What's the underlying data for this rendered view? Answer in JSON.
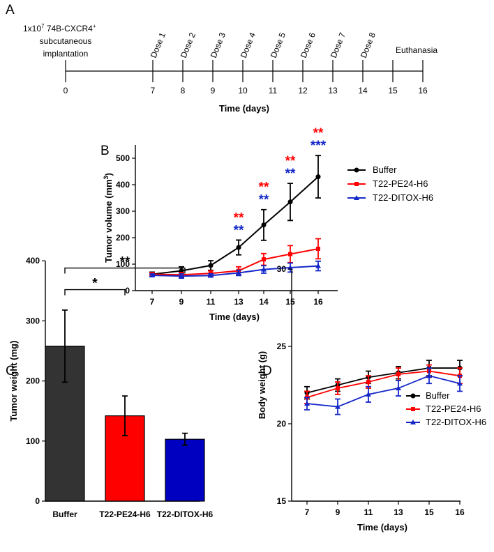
{
  "panels": {
    "a": "A",
    "b": "B",
    "c": "C",
    "d": "D"
  },
  "timeline": {
    "implantation_line1": "1x10",
    "implantation_sup": "7",
    "implantation_cell": " 74B-CXCR4",
    "implantation_plus": "+",
    "implantation_line2": "subcutaneous",
    "implantation_line3": "implantation",
    "ticks": [
      "0",
      "7",
      "8",
      "9",
      "10",
      "11",
      "12",
      "13",
      "14",
      "15",
      "16"
    ],
    "doses": [
      "Dose 1",
      "Dose 2",
      "Dose 3",
      "Dose 4",
      "Dose 5",
      "Dose 6",
      "Dose 7",
      "Dose 8"
    ],
    "euthanasia": "Euthanasia",
    "xlabel": "Time (days)"
  },
  "chart_data": [
    {
      "id": "B",
      "type": "line",
      "title": "",
      "xlabel": "Time (days)",
      "ylabel_main": "Tumor volume (mm",
      "ylabel_sup": "3",
      "ylabel_end": ")",
      "categories": [
        "7",
        "9",
        "11",
        "13",
        "14",
        "15",
        "16"
      ],
      "yticks": [
        "0",
        "100",
        "200",
        "300",
        "400",
        "500"
      ],
      "ylim": [
        0,
        550
      ],
      "series": [
        {
          "name": "Buffer",
          "color": "#000000",
          "marker": "circle",
          "values": [
            62,
            75,
            95,
            163,
            248,
            335,
            430
          ],
          "errors": [
            8,
            15,
            18,
            28,
            58,
            70,
            80
          ]
        },
        {
          "name": "T22-PE24-H6",
          "color": "#ff0000",
          "marker": "square",
          "values": [
            62,
            60,
            65,
            75,
            118,
            138,
            158
          ],
          "errors": [
            6,
            8,
            10,
            15,
            22,
            32,
            38
          ]
        },
        {
          "name": "T22-DITOX-H6",
          "color": "#1428c8",
          "marker": "triangle",
          "values": [
            58,
            55,
            57,
            67,
            80,
            87,
            93
          ],
          "errors": [
            5,
            8,
            6,
            10,
            14,
            17,
            18
          ]
        }
      ],
      "annotations": [
        {
          "category": "13",
          "red": "**",
          "blue": "**"
        },
        {
          "category": "14",
          "red": "**",
          "blue": "**"
        },
        {
          "category": "15",
          "red": "**",
          "blue": "**"
        },
        {
          "category": "16",
          "red": "**",
          "blue": "***"
        }
      ]
    },
    {
      "id": "C",
      "type": "bar",
      "title": "",
      "xlabel": "",
      "ylabel": "Tumor weight (mg)",
      "categories": [
        "Buffer",
        "T22-PE24-H6",
        "T22-DITOX-H6"
      ],
      "values": [
        258,
        142,
        103
      ],
      "errors": [
        60,
        33,
        10
      ],
      "colors": [
        "#333333",
        "#ff0000",
        "#0000c0"
      ],
      "yticks": [
        "0",
        "100",
        "200",
        "300",
        "400"
      ],
      "ylim": [
        0,
        400
      ],
      "significance": [
        {
          "from": 0,
          "to": 1,
          "label": "*"
        },
        {
          "from": 0,
          "to": 2,
          "label": "**"
        }
      ]
    },
    {
      "id": "D",
      "type": "line",
      "title": "",
      "xlabel": "Time (days)",
      "ylabel": "Body weight (g)",
      "categories": [
        "7",
        "9",
        "11",
        "13",
        "15",
        "16"
      ],
      "yticks": [
        "15",
        "20",
        "25",
        "30"
      ],
      "ylim": [
        15,
        30
      ],
      "series": [
        {
          "name": "Buffer",
          "color": "#000000",
          "marker": "circle",
          "values": [
            22.0,
            22.5,
            23.0,
            23.3,
            23.6,
            23.6
          ],
          "errors": [
            0.4,
            0.4,
            0.4,
            0.4,
            0.5,
            0.5
          ]
        },
        {
          "name": "T22-PE24-H6",
          "color": "#ff0000",
          "marker": "square",
          "values": [
            21.7,
            22.3,
            22.7,
            23.2,
            23.4,
            23.1
          ],
          "errors": [
            0.4,
            0.4,
            0.4,
            0.4,
            0.4,
            0.5
          ]
        },
        {
          "name": "T22-DITOX-H6",
          "color": "#1428c8",
          "marker": "triangle",
          "values": [
            21.3,
            21.1,
            21.9,
            22.3,
            23.1,
            22.6
          ],
          "errors": [
            0.4,
            0.5,
            0.5,
            0.5,
            0.5,
            0.5
          ]
        }
      ]
    }
  ],
  "colors": {
    "red_annotation": "#ff0000",
    "blue_annotation": "#1428c8"
  }
}
